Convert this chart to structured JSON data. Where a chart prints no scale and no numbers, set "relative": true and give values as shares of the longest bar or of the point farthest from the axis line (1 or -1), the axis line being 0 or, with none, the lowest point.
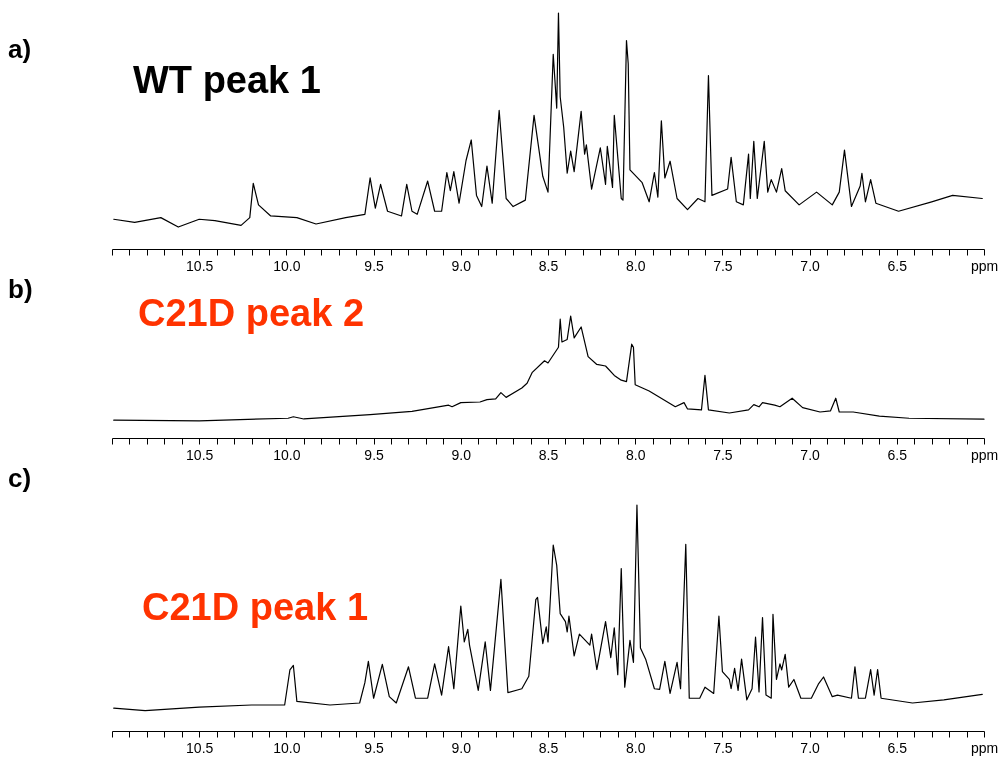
{
  "chart_data": [
    {
      "type": "line",
      "title": "WT peak 1",
      "annotations": [
        "a)"
      ],
      "relative": true,
      "xlim": [
        11.0,
        6.0
      ],
      "xticks": [
        {
          "value": 11.0,
          "label": null
        },
        {
          "value": 10.9,
          "label": null
        },
        {
          "value": 10.8,
          "label": null
        },
        {
          "value": 10.7,
          "label": null
        },
        {
          "value": 10.6,
          "label": null
        },
        10.5,
        {
          "value": 10.4,
          "label": null
        },
        {
          "value": 10.3,
          "label": null
        },
        {
          "value": 10.2,
          "label": null
        },
        {
          "value": 10.1,
          "label": null
        },
        {
          "value": 10.0,
          "label": "10.0"
        },
        {
          "value": 9.9,
          "label": null
        },
        {
          "value": 9.8,
          "label": null
        },
        {
          "value": 9.7,
          "label": null
        },
        {
          "value": 9.6,
          "label": null
        },
        9.5,
        {
          "value": 9.4,
          "label": null
        },
        {
          "value": 9.3,
          "label": null
        },
        {
          "value": 9.2,
          "label": null
        },
        {
          "value": 9.1,
          "label": null
        },
        {
          "value": 9.0,
          "label": "9.0"
        },
        {
          "value": 8.9,
          "label": null
        },
        {
          "value": 8.8,
          "label": null
        },
        {
          "value": 8.7,
          "label": null
        },
        {
          "value": 8.6,
          "label": null
        },
        8.5,
        {
          "value": 8.4,
          "label": null
        },
        {
          "value": 8.3,
          "label": null
        },
        {
          "value": 8.2,
          "label": null
        },
        {
          "value": 8.1,
          "label": null
        },
        {
          "value": 8.0,
          "label": "8.0"
        },
        {
          "value": 7.9,
          "label": null
        },
        {
          "value": 7.8,
          "label": null
        },
        {
          "value": 7.7,
          "label": null
        },
        {
          "value": 7.6,
          "label": null
        },
        7.5,
        {
          "value": 7.4,
          "label": null
        },
        {
          "value": 7.3,
          "label": null
        },
        {
          "value": 7.2,
          "label": null
        },
        {
          "value": 7.1,
          "label": null
        },
        {
          "value": 7.0,
          "label": "7.0"
        },
        {
          "value": 6.9,
          "label": null
        },
        {
          "value": 6.8,
          "label": null
        },
        {
          "value": 6.7,
          "label": null
        },
        {
          "value": 6.6,
          "label": null
        },
        6.5,
        {
          "value": 6.4,
          "label": null
        },
        {
          "value": 6.3,
          "label": null
        },
        {
          "value": 6.2,
          "label": null
        },
        {
          "value": 6.1,
          "label": null
        },
        {
          "value": 6.0,
          "label": "ppm"
        }
      ],
      "x": [
        10.99,
        10.87,
        10.72,
        10.62,
        10.5,
        10.41,
        10.26,
        10.21,
        10.19,
        10.16,
        10.09,
        9.94,
        9.83,
        9.66,
        9.55,
        9.52,
        9.49,
        9.46,
        9.42,
        9.34,
        9.31,
        9.28,
        9.25,
        9.19,
        9.15,
        9.11,
        9.08,
        9.06,
        9.04,
        9.01,
        8.97,
        8.94,
        8.91,
        8.88,
        8.85,
        8.82,
        8.78,
        8.74,
        8.7,
        8.63,
        8.58,
        8.53,
        8.5,
        8.47,
        8.45,
        8.44,
        8.43,
        8.41,
        8.39,
        8.37,
        8.35,
        8.31,
        8.29,
        8.28,
        8.25,
        8.2,
        8.17,
        8.16,
        8.13,
        8.12,
        8.08,
        8.07,
        8.05,
        8.04,
        8.03,
        7.96,
        7.92,
        7.89,
        7.87,
        7.85,
        7.83,
        7.8,
        7.76,
        7.7,
        7.64,
        7.6,
        7.58,
        7.56,
        7.47,
        7.45,
        7.42,
        7.38,
        7.35,
        7.34,
        7.32,
        7.3,
        7.26,
        7.24,
        7.22,
        7.19,
        7.16,
        7.14,
        7.06,
        6.96,
        6.87,
        6.83,
        6.8,
        6.76,
        6.71,
        6.7,
        6.68,
        6.65,
        6.62,
        6.49,
        6.3,
        6.18,
        6.01
      ],
      "series": [
        {
          "color": "#000000",
          "values": [
            0.126,
            0.113,
            0.133,
            0.093,
            0.126,
            0.12,
            0.1,
            0.133,
            0.278,
            0.187,
            0.14,
            0.133,
            0.106,
            0.133,
            0.147,
            0.301,
            0.173,
            0.274,
            0.16,
            0.14,
            0.274,
            0.16,
            0.147,
            0.288,
            0.16,
            0.16,
            0.324,
            0.247,
            0.328,
            0.194,
            0.375,
            0.462,
            0.227,
            0.18,
            0.351,
            0.194,
            0.587,
            0.214,
            0.18,
            0.207,
            0.566,
            0.308,
            0.241,
            0.825,
            0.597,
            1.0,
            0.644,
            0.516,
            0.321,
            0.415,
            0.328,
            0.583,
            0.402,
            0.441,
            0.254,
            0.429,
            0.274,
            0.435,
            0.261,
            0.566,
            0.214,
            0.207,
            0.883,
            0.785,
            0.335,
            0.281,
            0.2,
            0.324,
            0.22,
            0.543,
            0.301,
            0.372,
            0.214,
            0.167,
            0.214,
            0.2,
            0.735,
            0.227,
            0.254,
            0.388,
            0.2,
            0.187,
            0.402,
            0.214,
            0.456,
            0.214,
            0.456,
            0.241,
            0.294,
            0.241,
            0.341,
            0.247,
            0.187,
            0.241,
            0.187,
            0.241,
            0.419,
            0.18,
            0.267,
            0.321,
            0.2,
            0.294,
            0.194,
            0.16,
            0.2,
            0.227,
            0.214
          ]
        }
      ]
    },
    {
      "type": "line",
      "title": "C21D peak 2",
      "annotations": [
        "b)"
      ],
      "relative": true,
      "xlim": [
        11.0,
        6.0
      ],
      "xticks": [
        {
          "value": 11.0,
          "label": null
        },
        {
          "value": 10.9,
          "label": null
        },
        {
          "value": 10.8,
          "label": null
        },
        {
          "value": 10.7,
          "label": null
        },
        {
          "value": 10.6,
          "label": null
        },
        10.5,
        {
          "value": 10.4,
          "label": null
        },
        {
          "value": 10.3,
          "label": null
        },
        {
          "value": 10.2,
          "label": null
        },
        {
          "value": 10.1,
          "label": null
        },
        {
          "value": 10.0,
          "label": "10.0"
        },
        {
          "value": 9.9,
          "label": null
        },
        {
          "value": 9.8,
          "label": null
        },
        {
          "value": 9.7,
          "label": null
        },
        {
          "value": 9.6,
          "label": null
        },
        9.5,
        {
          "value": 9.4,
          "label": null
        },
        {
          "value": 9.3,
          "label": null
        },
        {
          "value": 9.2,
          "label": null
        },
        {
          "value": 9.1,
          "label": null
        },
        {
          "value": 9.0,
          "label": "9.0"
        },
        {
          "value": 8.9,
          "label": null
        },
        {
          "value": 8.8,
          "label": null
        },
        {
          "value": 8.7,
          "label": null
        },
        {
          "value": 8.6,
          "label": null
        },
        8.5,
        {
          "value": 8.4,
          "label": null
        },
        {
          "value": 8.3,
          "label": null
        },
        {
          "value": 8.2,
          "label": null
        },
        {
          "value": 8.1,
          "label": null
        },
        {
          "value": 8.0,
          "label": "8.0"
        },
        {
          "value": 7.9,
          "label": null
        },
        {
          "value": 7.8,
          "label": null
        },
        {
          "value": 7.7,
          "label": null
        },
        {
          "value": 7.6,
          "label": null
        },
        7.5,
        {
          "value": 7.4,
          "label": null
        },
        {
          "value": 7.3,
          "label": null
        },
        {
          "value": 7.2,
          "label": null
        },
        {
          "value": 7.1,
          "label": null
        },
        {
          "value": 7.0,
          "label": "7.0"
        },
        {
          "value": 6.9,
          "label": null
        },
        {
          "value": 6.8,
          "label": null
        },
        {
          "value": 6.7,
          "label": null
        },
        {
          "value": 6.6,
          "label": null
        },
        6.5,
        {
          "value": 6.4,
          "label": null
        },
        {
          "value": 6.3,
          "label": null
        },
        {
          "value": 6.2,
          "label": null
        },
        {
          "value": 6.1,
          "label": null
        },
        {
          "value": 6.0,
          "label": "ppm"
        }
      ],
      "x": [
        10.99,
        10.5,
        9.99,
        9.96,
        9.9,
        9.52,
        9.28,
        9.07,
        9.05,
        9.0,
        8.89,
        8.85,
        8.8,
        8.77,
        8.74,
        8.65,
        8.62,
        8.59,
        8.52,
        8.5,
        8.44,
        8.43,
        8.42,
        8.39,
        8.37,
        8.35,
        8.31,
        8.27,
        8.22,
        8.17,
        8.12,
        8.08,
        8.05,
        8.02,
        8.01,
        8.0,
        7.92,
        7.77,
        7.72,
        7.7,
        7.62,
        7.6,
        7.58,
        7.46,
        7.35,
        7.32,
        7.29,
        7.27,
        7.2,
        7.17,
        7.1,
        7.04,
        6.94,
        6.88,
        6.85,
        6.83,
        6.75,
        6.6,
        6.43,
        6.0
      ],
      "series": [
        {
          "color": "#000000",
          "values": [
            0.146,
            0.141,
            0.162,
            0.174,
            0.156,
            0.192,
            0.218,
            0.269,
            0.256,
            0.29,
            0.295,
            0.315,
            0.321,
            0.372,
            0.333,
            0.41,
            0.449,
            0.538,
            0.633,
            0.615,
            0.744,
            0.974,
            0.787,
            0.808,
            1.0,
            0.821,
            0.91,
            0.667,
            0.603,
            0.59,
            0.513,
            0.474,
            0.462,
            0.769,
            0.744,
            0.436,
            0.385,
            0.256,
            0.29,
            0.238,
            0.231,
            0.513,
            0.231,
            0.205,
            0.231,
            0.274,
            0.256,
            0.29,
            0.269,
            0.256,
            0.326,
            0.249,
            0.213,
            0.223,
            0.326,
            0.213,
            0.213,
            0.179,
            0.162,
            0.154
          ]
        }
      ]
    },
    {
      "type": "line",
      "title": "C21D peak 1",
      "annotations": [
        "c)"
      ],
      "relative": true,
      "xlim": [
        11.0,
        6.0
      ],
      "xticks": [
        {
          "value": 11.0,
          "label": null
        },
        {
          "value": 10.9,
          "label": null
        },
        {
          "value": 10.8,
          "label": null
        },
        {
          "value": 10.7,
          "label": null
        },
        {
          "value": 10.6,
          "label": null
        },
        10.5,
        {
          "value": 10.4,
          "label": null
        },
        {
          "value": 10.3,
          "label": null
        },
        {
          "value": 10.2,
          "label": null
        },
        {
          "value": 10.1,
          "label": null
        },
        {
          "value": 10.0,
          "label": "10.0"
        },
        {
          "value": 9.9,
          "label": null
        },
        {
          "value": 9.8,
          "label": null
        },
        {
          "value": 9.7,
          "label": null
        },
        {
          "value": 9.6,
          "label": null
        },
        9.5,
        {
          "value": 9.4,
          "label": null
        },
        {
          "value": 9.3,
          "label": null
        },
        {
          "value": 9.2,
          "label": null
        },
        {
          "value": 9.1,
          "label": null
        },
        {
          "value": 9.0,
          "label": "9.0"
        },
        {
          "value": 8.9,
          "label": null
        },
        {
          "value": 8.8,
          "label": null
        },
        {
          "value": 8.7,
          "label": null
        },
        {
          "value": 8.6,
          "label": null
        },
        8.5,
        {
          "value": 8.4,
          "label": null
        },
        {
          "value": 8.3,
          "label": null
        },
        {
          "value": 8.2,
          "label": null
        },
        {
          "value": 8.1,
          "label": null
        },
        {
          "value": 8.0,
          "label": "8.0"
        },
        {
          "value": 7.9,
          "label": null
        },
        {
          "value": 7.8,
          "label": null
        },
        {
          "value": 7.7,
          "label": null
        },
        {
          "value": 7.6,
          "label": null
        },
        7.5,
        {
          "value": 7.4,
          "label": null
        },
        {
          "value": 7.3,
          "label": null
        },
        {
          "value": 7.2,
          "label": null
        },
        {
          "value": 7.1,
          "label": null
        },
        {
          "value": 7.0,
          "label": "7.0"
        },
        {
          "value": 6.9,
          "label": null
        },
        {
          "value": 6.8,
          "label": null
        },
        {
          "value": 6.7,
          "label": null
        },
        {
          "value": 6.6,
          "label": null
        },
        6.5,
        {
          "value": 6.4,
          "label": null
        },
        {
          "value": 6.3,
          "label": null
        },
        {
          "value": 6.2,
          "label": null
        },
        {
          "value": 6.1,
          "label": null
        },
        {
          "value": 6.0,
          "label": "ppm"
        }
      ],
      "x": [
        10.99,
        10.81,
        10.5,
        10.2,
        10.01,
        9.98,
        9.96,
        9.94,
        9.75,
        9.58,
        9.55,
        9.53,
        9.5,
        9.45,
        9.41,
        9.37,
        9.3,
        9.26,
        9.19,
        9.15,
        9.11,
        9.07,
        9.04,
        9.0,
        8.98,
        8.96,
        8.95,
        8.9,
        8.86,
        8.83,
        8.77,
        8.73,
        8.65,
        8.61,
        8.57,
        8.56,
        8.53,
        8.51,
        8.5,
        8.47,
        8.45,
        8.43,
        8.4,
        8.39,
        8.38,
        8.35,
        8.32,
        8.26,
        8.25,
        8.22,
        8.17,
        8.14,
        8.12,
        8.1,
        8.08,
        8.06,
        8.03,
        8.01,
        7.99,
        7.97,
        7.94,
        7.89,
        7.86,
        7.83,
        7.8,
        7.76,
        7.74,
        7.71,
        7.69,
        7.63,
        7.6,
        7.55,
        7.52,
        7.5,
        7.46,
        7.45,
        7.43,
        7.41,
        7.39,
        7.36,
        7.33,
        7.31,
        7.29,
        7.27,
        7.25,
        7.22,
        7.21,
        7.19,
        7.17,
        7.16,
        7.14,
        7.12,
        7.09,
        7.05,
        6.99,
        6.95,
        6.92,
        6.87,
        6.84,
        6.76,
        6.74,
        6.72,
        6.68,
        6.65,
        6.63,
        6.61,
        6.59,
        6.41,
        6.23,
        6.01
      ],
      "series": [
        {
          "color": "#000000",
          "values": [
            0.101,
            0.09,
            0.106,
            0.115,
            0.115,
            0.27,
            0.29,
            0.131,
            0.115,
            0.124,
            0.214,
            0.308,
            0.145,
            0.295,
            0.152,
            0.124,
            0.284,
            0.145,
            0.145,
            0.297,
            0.159,
            0.373,
            0.187,
            0.553,
            0.394,
            0.45,
            0.38,
            0.18,
            0.394,
            0.18,
            0.671,
            0.17,
            0.187,
            0.242,
            0.581,
            0.591,
            0.387,
            0.461,
            0.394,
            0.823,
            0.733,
            0.519,
            0.484,
            0.438,
            0.508,
            0.332,
            0.429,
            0.38,
            0.429,
            0.272,
            0.484,
            0.325,
            0.456,
            0.249,
            0.719,
            0.194,
            0.401,
            0.304,
            1.0,
            0.367,
            0.318,
            0.187,
            0.184,
            0.308,
            0.166,
            0.304,
            0.187,
            0.826,
            0.145,
            0.145,
            0.194,
            0.166,
            0.508,
            0.263,
            0.228,
            0.187,
            0.277,
            0.18,
            0.318,
            0.138,
            0.187,
            0.415,
            0.173,
            0.502,
            0.159,
            0.145,
            0.516,
            0.228,
            0.297,
            0.27,
            0.339,
            0.194,
            0.228,
            0.145,
            0.145,
            0.207,
            0.239,
            0.152,
            0.159,
            0.145,
            0.284,
            0.145,
            0.145,
            0.272,
            0.159,
            0.272,
            0.145,
            0.124,
            0.138,
            0.162
          ]
        }
      ]
    }
  ]
}
